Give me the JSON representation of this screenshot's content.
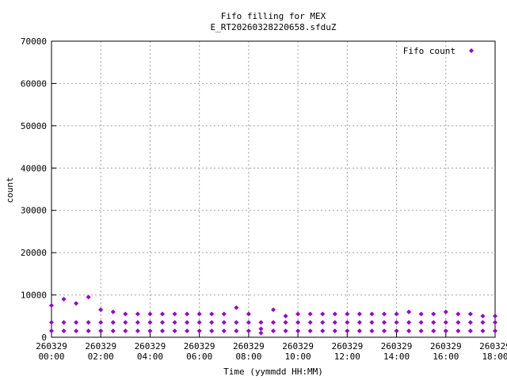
{
  "chart_data": {
    "type": "scatter",
    "title": "Fifo filling for MEX",
    "subtitle": "E_RT20260328220658.sfduZ",
    "x_label": "Time (yymmdd HH:MM)",
    "y_label": "count",
    "legend_position": "top-right",
    "grid": true,
    "xlim": [
      0,
      18
    ],
    "ylim": [
      0,
      70000
    ],
    "yticks": [
      0,
      10000,
      20000,
      30000,
      40000,
      50000,
      60000,
      70000
    ],
    "xticks": [
      {
        "value": 0,
        "label": "260329\n00:00"
      },
      {
        "value": 2,
        "label": "260329\n02:00"
      },
      {
        "value": 4,
        "label": "260329\n04:00"
      },
      {
        "value": 6,
        "label": "260329\n06:00"
      },
      {
        "value": 8,
        "label": "260329\n08:00"
      },
      {
        "value": 10,
        "label": "260329\n10:00"
      },
      {
        "value": 12,
        "label": "260329\n12:00"
      },
      {
        "value": 14,
        "label": "260329\n14:00"
      },
      {
        "value": 16,
        "label": "260329\n16:00"
      },
      {
        "value": 18,
        "label": "260329\n18:00"
      }
    ],
    "series": [
      {
        "name": "Fifo count",
        "color": "#9400d3",
        "x": [
          0,
          0,
          0,
          0.5,
          0.5,
          0.5,
          1,
          1,
          1,
          1.5,
          1.5,
          1.5,
          2,
          2,
          2,
          2.5,
          2.5,
          2.5,
          3,
          3,
          3,
          3.5,
          3.5,
          3.5,
          4,
          4,
          4,
          4.5,
          4.5,
          4.5,
          5,
          5,
          5,
          5.5,
          5.5,
          5.5,
          6,
          6,
          6,
          6.5,
          6.5,
          6.5,
          7,
          7,
          7,
          7.5,
          7.5,
          7.5,
          8,
          8,
          8,
          8.5,
          8.5,
          8.5,
          9,
          9,
          9,
          9.5,
          9.5,
          9.5,
          10,
          10,
          10,
          10.5,
          10.5,
          10.5,
          11,
          11,
          11,
          11.5,
          11.5,
          11.5,
          12,
          12,
          12,
          12.5,
          12.5,
          12.5,
          13,
          13,
          13,
          13.5,
          13.5,
          13.5,
          14,
          14,
          14,
          14.5,
          14.5,
          14.5,
          15,
          15,
          15,
          15.5,
          15.5,
          15.5,
          16,
          16,
          16,
          16.5,
          16.5,
          16.5,
          17,
          17,
          17,
          17.5,
          17.5,
          17.5,
          18,
          18,
          18
        ],
        "values": [
          1500,
          3500,
          7500,
          1500,
          3500,
          9000,
          1500,
          3500,
          8000,
          1500,
          3500,
          9500,
          1500,
          3500,
          6500,
          1500,
          3500,
          6000,
          1500,
          3500,
          5500,
          1500,
          3500,
          5500,
          1500,
          3500,
          5500,
          1500,
          3500,
          5500,
          1500,
          3500,
          5500,
          1500,
          3500,
          5500,
          1500,
          3500,
          5500,
          1500,
          3500,
          5500,
          1500,
          3500,
          5500,
          1500,
          3500,
          7000,
          1500,
          3500,
          5500,
          1000,
          2000,
          3500,
          1500,
          3500,
          6500,
          1500,
          3500,
          5000,
          1500,
          3500,
          5500,
          1500,
          3500,
          5500,
          1500,
          3500,
          5500,
          1500,
          3500,
          5500,
          1500,
          3500,
          5500,
          1500,
          3500,
          5500,
          1500,
          3500,
          5500,
          1500,
          3500,
          5500,
          1500,
          3500,
          5500,
          1500,
          3500,
          6000,
          1500,
          3500,
          5500,
          1500,
          3500,
          5500,
          1500,
          3500,
          6000,
          1500,
          3500,
          5500,
          1500,
          3500,
          5500,
          1500,
          3500,
          5000,
          1500,
          3500,
          5000
        ]
      }
    ]
  }
}
